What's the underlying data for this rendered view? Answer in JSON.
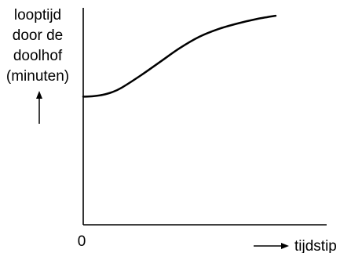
{
  "chart_data": {
    "type": "line",
    "title": "",
    "ylabel_lines": [
      "looptijd",
      "door de",
      "doolhof",
      "(minuten)"
    ],
    "xlabel": "tijdstip",
    "x_ticks": [
      {
        "value": 0,
        "label": "0"
      }
    ],
    "xlim": [
      0,
      10
    ],
    "ylim": [
      0,
      10
    ],
    "grid": false,
    "axis_arrows": {
      "y": "up",
      "x": "right"
    },
    "series": [
      {
        "x": [
          0,
          0.5,
          1,
          1.5,
          2,
          3,
          4,
          5,
          6,
          7,
          8,
          9,
          10
        ],
        "values": [
          5.7,
          5.72,
          5.78,
          5.9,
          6.1,
          6.65,
          7.25,
          7.85,
          8.35,
          8.7,
          8.95,
          9.15,
          9.3
        ]
      }
    ]
  }
}
